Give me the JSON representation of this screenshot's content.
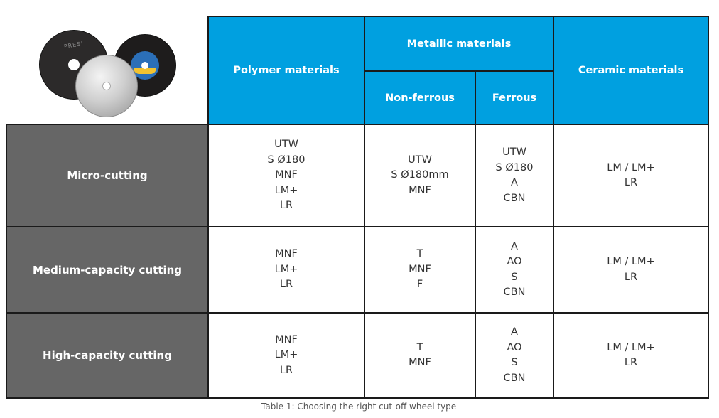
{
  "image": {
    "description_icon": "cutoff-wheels-image",
    "disc_label": "PRESI"
  },
  "header": {
    "polymer": "Polymer materials",
    "metallic": "Metallic materials",
    "non_ferrous": "Non-ferrous",
    "ferrous": "Ferrous",
    "ceramic": "Ceramic materials"
  },
  "rows": [
    {
      "label": "Micro-cutting",
      "polymer": [
        "UTW",
        "S Ø180",
        "MNF",
        "LM+",
        "LR"
      ],
      "non_ferrous": [
        "UTW",
        "S Ø180mm",
        "MNF"
      ],
      "ferrous": [
        "UTW",
        "S Ø180",
        "A",
        "CBN"
      ],
      "ceramic": [
        "LM / LM+",
        "LR"
      ]
    },
    {
      "label": "Medium-capacity cutting",
      "polymer": [
        "MNF",
        "LM+",
        "LR"
      ],
      "non_ferrous": [
        "T",
        "MNF",
        "F"
      ],
      "ferrous": [
        "A",
        "AO",
        "S",
        "CBN"
      ],
      "ceramic": [
        "LM / LM+",
        "LR"
      ]
    },
    {
      "label": "High-capacity cutting",
      "polymer": [
        "MNF",
        "LM+",
        "LR"
      ],
      "non_ferrous": [
        "T",
        "MNF"
      ],
      "ferrous": [
        "A",
        "AO",
        "S",
        "CBN"
      ],
      "ceramic": [
        "LM / LM+",
        "LR"
      ]
    }
  ],
  "caption": "Table 1: Choosing the right cut-off wheel type",
  "colors": {
    "header_bg": "#00a0e0",
    "row_header_bg": "#666666",
    "border": "#1a1a1a"
  }
}
